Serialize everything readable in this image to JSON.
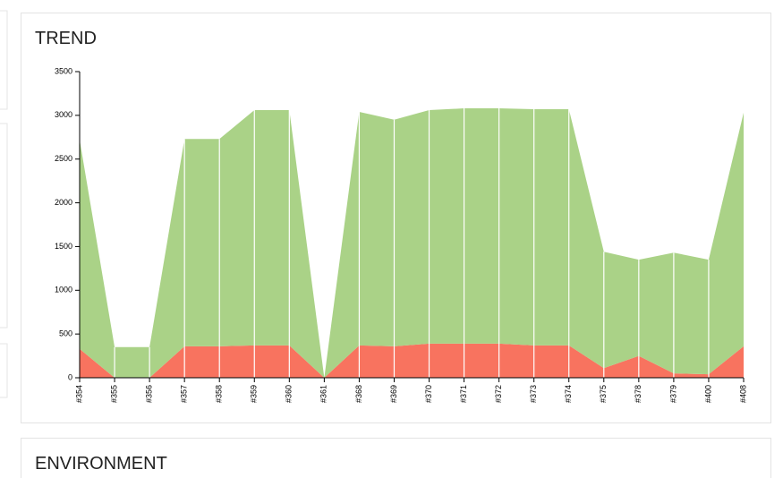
{
  "chart_data": {
    "type": "stacked-area",
    "title": "TREND",
    "categories": [
      "#354",
      "#355",
      "#356",
      "#357",
      "#358",
      "#359",
      "#360",
      "#361",
      "#368",
      "#369",
      "#370",
      "#371",
      "#372",
      "#373",
      "#374",
      "#375",
      "#378",
      "#379",
      "#400",
      "#408"
    ],
    "series": [
      {
        "color": "#f8735f",
        "values": [
          330,
          0,
          0,
          360,
          360,
          370,
          370,
          0,
          370,
          360,
          390,
          390,
          390,
          370,
          370,
          110,
          250,
          50,
          40,
          360
        ]
      },
      {
        "color": "#aad287",
        "values": [
          2390,
          350,
          350,
          2370,
          2370,
          2690,
          2690,
          0,
          2670,
          2590,
          2670,
          2690,
          2690,
          2700,
          2700,
          1330,
          1100,
          1380,
          1310,
          2670
        ]
      }
    ],
    "ylim": [
      0,
      3500
    ],
    "yticks": [
      0,
      500,
      1000,
      1500,
      2000,
      2500,
      3000,
      3500
    ]
  },
  "environment": {
    "title": "ENVIRONMENT"
  }
}
